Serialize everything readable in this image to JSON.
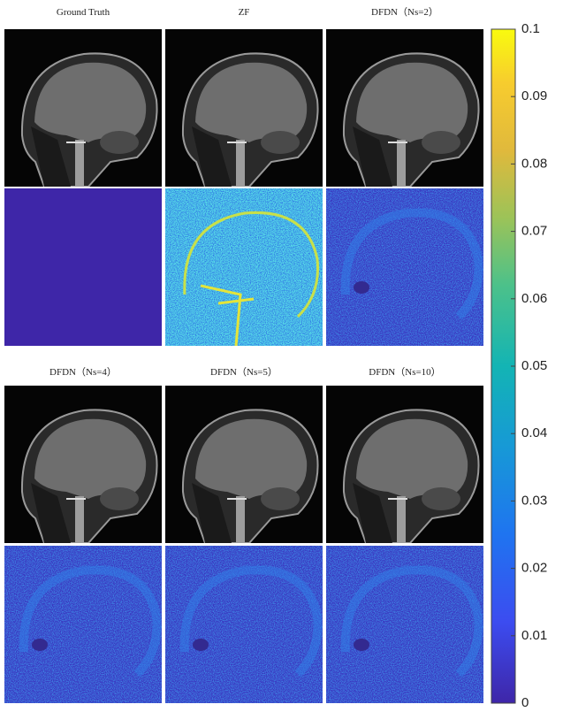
{
  "panels": [
    {
      "title": "Ground Truth"
    },
    {
      "title": "ZF"
    },
    {
      "title": "DFDN（Ns=2）"
    },
    {
      "title": "DFDN（Ns=4）"
    },
    {
      "title": "DFDN（Ns=5）"
    },
    {
      "title": "DFDN（Ns=10）"
    }
  ],
  "colorbar": {
    "lim": [
      0,
      0.1
    ],
    "ticks": [
      0,
      0.01,
      0.02,
      0.03,
      0.04,
      0.05,
      0.06,
      0.07,
      0.08,
      0.09,
      0.1
    ]
  }
}
